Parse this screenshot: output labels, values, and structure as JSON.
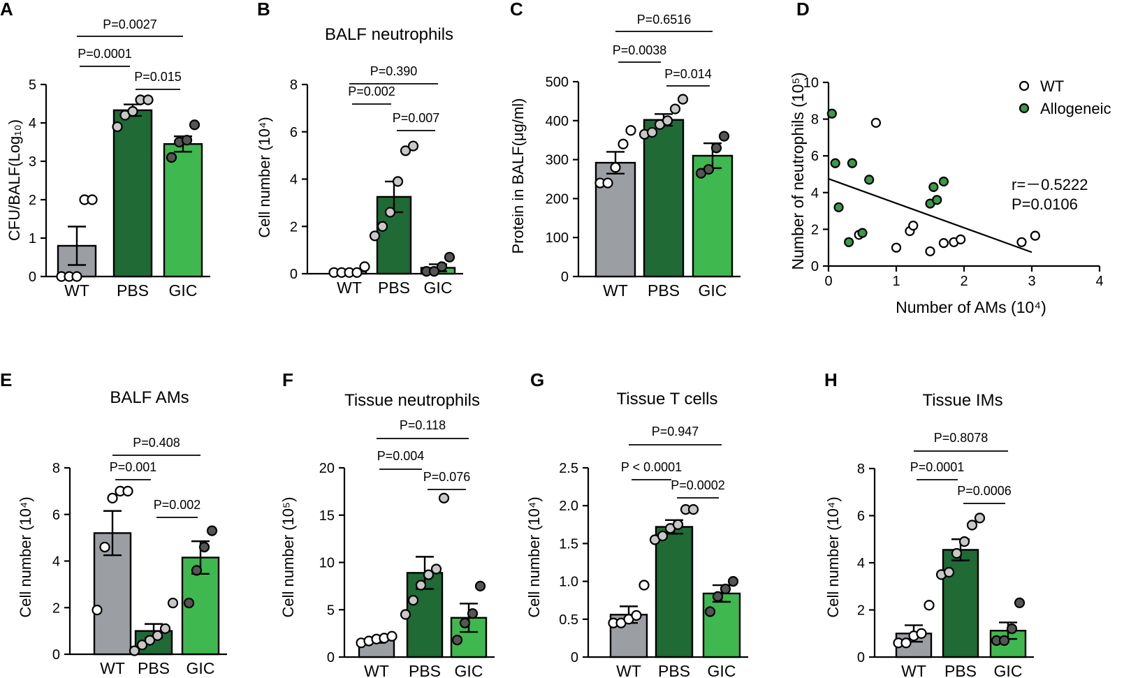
{
  "colors": {
    "wt_bar": "#9b9ea3",
    "pbs_bar": "#1f6a35",
    "gic_bar": "#3fb84f",
    "wt_point": "#ffffff",
    "pbs_point": "#c8c8c8",
    "gic_point": "#555555",
    "allo_point": "#3a9a47",
    "allo_text": "#2e8b3d"
  },
  "chart_data": [
    {
      "panel": "A",
      "type": "bar",
      "title": "",
      "ylabel": "CFU/BALF(Log₁₀)",
      "ylim": [
        0,
        5
      ],
      "yticks": [
        "0",
        "1",
        "2",
        "3",
        "4",
        "5"
      ],
      "categories": [
        "WT",
        "PBS",
        "GIC"
      ],
      "means": [
        0.8,
        4.33,
        3.45
      ],
      "sem": [
        0.5,
        0.15,
        0.2
      ],
      "points": [
        [
          0,
          0,
          0,
          2,
          2
        ],
        [
          3.9,
          4.2,
          4.3,
          4.6,
          4.6
        ],
        [
          3.1,
          3.5,
          3.55,
          3.95
        ]
      ],
      "comparisons": [
        {
          "pair": [
            0,
            1
          ],
          "label": "P=0.0001"
        },
        {
          "pair": [
            1,
            2
          ],
          "label": "P=0.015"
        },
        {
          "pair": [
            0,
            2
          ],
          "label": "P=0.0027"
        }
      ]
    },
    {
      "panel": "B",
      "type": "bar",
      "title": "BALF neutrophils",
      "ylabel": "Cell number (10⁴)",
      "ylim": [
        0,
        8
      ],
      "yticks": [
        "0",
        "2",
        "4",
        "6",
        "8"
      ],
      "categories": [
        "WT",
        "PBS",
        "GIC"
      ],
      "means": [
        0.1,
        3.25,
        0.25
      ],
      "sem": [
        0.05,
        0.65,
        0.15
      ],
      "points": [
        [
          0.05,
          0.05,
          0.05,
          0.05,
          0.3
        ],
        [
          1.6,
          2.0,
          2.6,
          3.9,
          5.2,
          5.4
        ],
        [
          0.1,
          0.1,
          0.3,
          0.7
        ]
      ],
      "comparisons": [
        {
          "pair": [
            0,
            1
          ],
          "label": "P=0.002"
        },
        {
          "pair": [
            1,
            2
          ],
          "label": "P=0.007"
        },
        {
          "pair": [
            0,
            2
          ],
          "label": "P=0.390"
        }
      ]
    },
    {
      "panel": "C",
      "type": "bar",
      "title": "",
      "ylabel": "Protein in BALF(μg/ml)",
      "ylim": [
        0,
        500
      ],
      "yticks": [
        "0",
        "100",
        "200",
        "300",
        "400",
        "500"
      ],
      "categories": [
        "WT",
        "PBS",
        "GIC"
      ],
      "means": [
        292,
        402,
        310
      ],
      "sem": [
        28,
        15,
        32
      ],
      "points": [
        [
          240,
          240,
          280,
          340,
          375
        ],
        [
          365,
          370,
          390,
          400,
          430,
          455
        ],
        [
          265,
          275,
          330,
          360
        ]
      ],
      "comparisons": [
        {
          "pair": [
            0,
            1
          ],
          "label": "P=0.0038"
        },
        {
          "pair": [
            1,
            2
          ],
          "label": "P=0.014"
        },
        {
          "pair": [
            0,
            2
          ],
          "label": "P=0.6516"
        }
      ]
    },
    {
      "panel": "D",
      "type": "scatter",
      "xlabel": "Number of AMs (10⁴)",
      "ylabel": "Number of neutrophils (10⁵)",
      "xlim": [
        0,
        4
      ],
      "ylim": [
        0,
        10
      ],
      "xticks": [
        "0",
        "1",
        "2",
        "3",
        "4"
      ],
      "yticks": [
        "0",
        "2",
        "4",
        "6",
        "8",
        "10"
      ],
      "series": [
        {
          "name": "WT",
          "x": [
            0.7,
            0.45,
            1.0,
            1.2,
            1.25,
            1.5,
            1.7,
            1.85,
            1.95,
            2.85,
            3.05
          ],
          "y": [
            7.8,
            1.7,
            1.0,
            1.9,
            2.2,
            0.8,
            1.25,
            1.3,
            1.45,
            1.3,
            1.65
          ]
        },
        {
          "name": "Allogeneic",
          "x": [
            0.05,
            0.1,
            0.15,
            0.3,
            0.35,
            0.5,
            0.6,
            1.5,
            1.55,
            1.6,
            1.7
          ],
          "y": [
            8.3,
            5.6,
            3.2,
            1.3,
            5.6,
            1.8,
            4.7,
            3.4,
            4.3,
            3.6,
            4.6
          ]
        }
      ],
      "fit": {
        "x": [
          0,
          3.0
        ],
        "y": [
          4.75,
          0.75
        ]
      },
      "stats": {
        "r": "r=－0.5222",
        "p": "P=0.0106"
      }
    },
    {
      "panel": "E",
      "type": "bar",
      "title": "BALF AMs",
      "ylabel": "Cell number (10⁴)",
      "ylim": [
        0,
        8
      ],
      "yticks": [
        "0",
        "2",
        "4",
        "6",
        "8"
      ],
      "categories": [
        "WT",
        "PBS",
        "GIC"
      ],
      "means": [
        5.2,
        1.0,
        4.15
      ],
      "sem": [
        0.95,
        0.3,
        0.7
      ],
      "points": [
        [
          1.9,
          4.6,
          6.7,
          7.0,
          7.0
        ],
        [
          0.15,
          0.4,
          0.6,
          0.8,
          1.1,
          2.2
        ],
        [
          2.2,
          3.6,
          4.6,
          5.3
        ]
      ],
      "comparisons": [
        {
          "pair": [
            0,
            1
          ],
          "label": "P=0.001"
        },
        {
          "pair": [
            1,
            2
          ],
          "label": "P=0.002"
        },
        {
          "pair": [
            0,
            2
          ],
          "label": "P=0.408"
        }
      ]
    },
    {
      "panel": "F",
      "type": "bar",
      "title": "Tissue neutrophils",
      "ylabel": "Cell number (10⁵)",
      "ylim": [
        0,
        20
      ],
      "yticks": [
        "0",
        "5",
        "10",
        "15",
        "20"
      ],
      "categories": [
        "WT",
        "PBS",
        "GIC"
      ],
      "means": [
        1.8,
        8.9,
        4.15
      ],
      "sem": [
        0.3,
        1.7,
        1.5
      ],
      "points": [
        [
          1.5,
          1.7,
          1.9,
          2.0,
          2.2
        ],
        [
          4.5,
          6.0,
          7.6,
          8.7,
          9.3,
          16.8
        ],
        [
          1.8,
          3.6,
          4.6,
          7.5
        ]
      ],
      "comparisons": [
        {
          "pair": [
            0,
            1
          ],
          "label": "P=0.004"
        },
        {
          "pair": [
            1,
            2
          ],
          "label": "P=0.076"
        },
        {
          "pair": [
            0,
            2
          ],
          "label": "P=0.118"
        }
      ]
    },
    {
      "panel": "G",
      "type": "bar",
      "title": "Tissue T cells",
      "ylabel": "Cell number (10⁴)",
      "ylim": [
        0,
        2.5
      ],
      "yticks": [
        "0",
        "0.5",
        "1.0",
        "1.5",
        "2.0",
        "2.5"
      ],
      "categories": [
        "WT",
        "PBS",
        "GIC"
      ],
      "means": [
        0.56,
        1.72,
        0.84
      ],
      "sem": [
        0.11,
        0.09,
        0.11
      ],
      "points": [
        [
          0.45,
          0.45,
          0.5,
          0.55,
          0.95
        ],
        [
          1.55,
          1.6,
          1.7,
          1.75,
          1.95,
          1.95
        ],
        [
          0.6,
          0.8,
          0.9,
          1.0
        ]
      ],
      "comparisons": [
        {
          "pair": [
            0,
            1
          ],
          "label": "P < 0.0001"
        },
        {
          "pair": [
            1,
            2
          ],
          "label": "P=0.0002"
        },
        {
          "pair": [
            0,
            2
          ],
          "label": "P=0.947"
        }
      ]
    },
    {
      "panel": "H",
      "type": "bar",
      "title": "Tissue IMs",
      "ylabel": "Cell number (10⁴)",
      "ylim": [
        0,
        8
      ],
      "yticks": [
        "0",
        "2",
        "4",
        "6",
        "8"
      ],
      "categories": [
        "WT",
        "PBS",
        "GIC"
      ],
      "means": [
        1.0,
        4.55,
        1.12
      ],
      "sem": [
        0.35,
        0.45,
        0.35
      ],
      "points": [
        [
          0.6,
          0.6,
          0.9,
          1.0,
          2.2
        ],
        [
          3.5,
          3.6,
          4.4,
          4.9,
          5.6,
          5.9
        ],
        [
          0.7,
          0.7,
          1.2,
          2.3
        ]
      ],
      "comparisons": [
        {
          "pair": [
            0,
            1
          ],
          "label": "P=0.0001"
        },
        {
          "pair": [
            1,
            2
          ],
          "label": "P=0.0006"
        },
        {
          "pair": [
            0,
            2
          ],
          "label": "P=0.8078"
        }
      ]
    }
  ]
}
